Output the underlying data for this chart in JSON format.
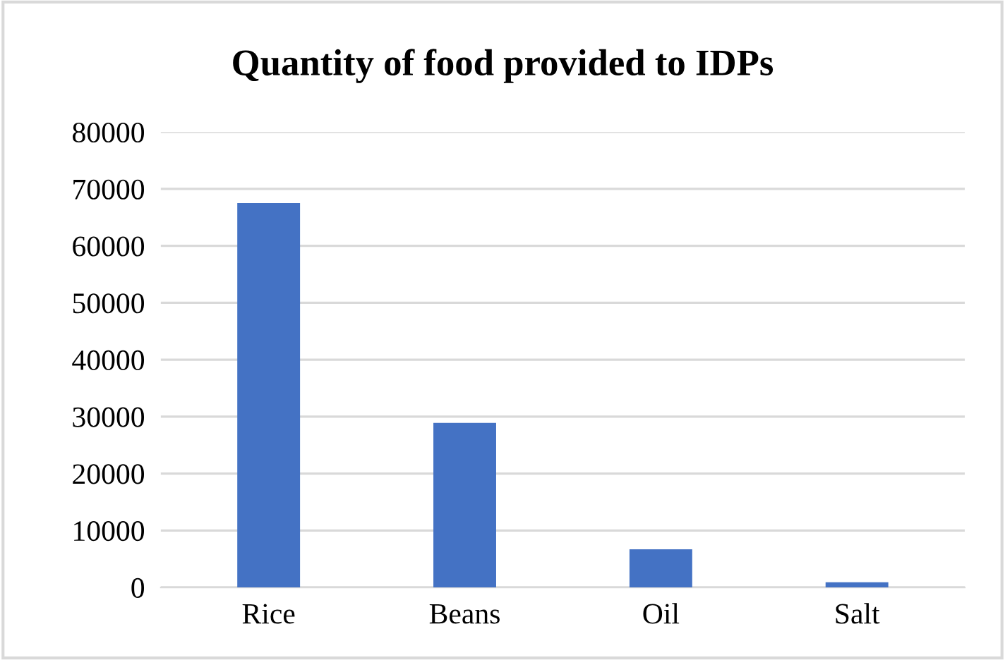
{
  "chart_data": {
    "type": "bar",
    "title": "Quantity of food provided to IDPs",
    "categories": [
      "Rice",
      "Beans",
      "Oil",
      "Salt"
    ],
    "values": [
      67500,
      28900,
      6700,
      900
    ],
    "color": "#4472c4",
    "ylim": [
      0,
      80000
    ],
    "yticks": [
      0,
      10000,
      20000,
      30000,
      40000,
      50000,
      60000,
      70000,
      80000
    ],
    "grid": "y"
  }
}
